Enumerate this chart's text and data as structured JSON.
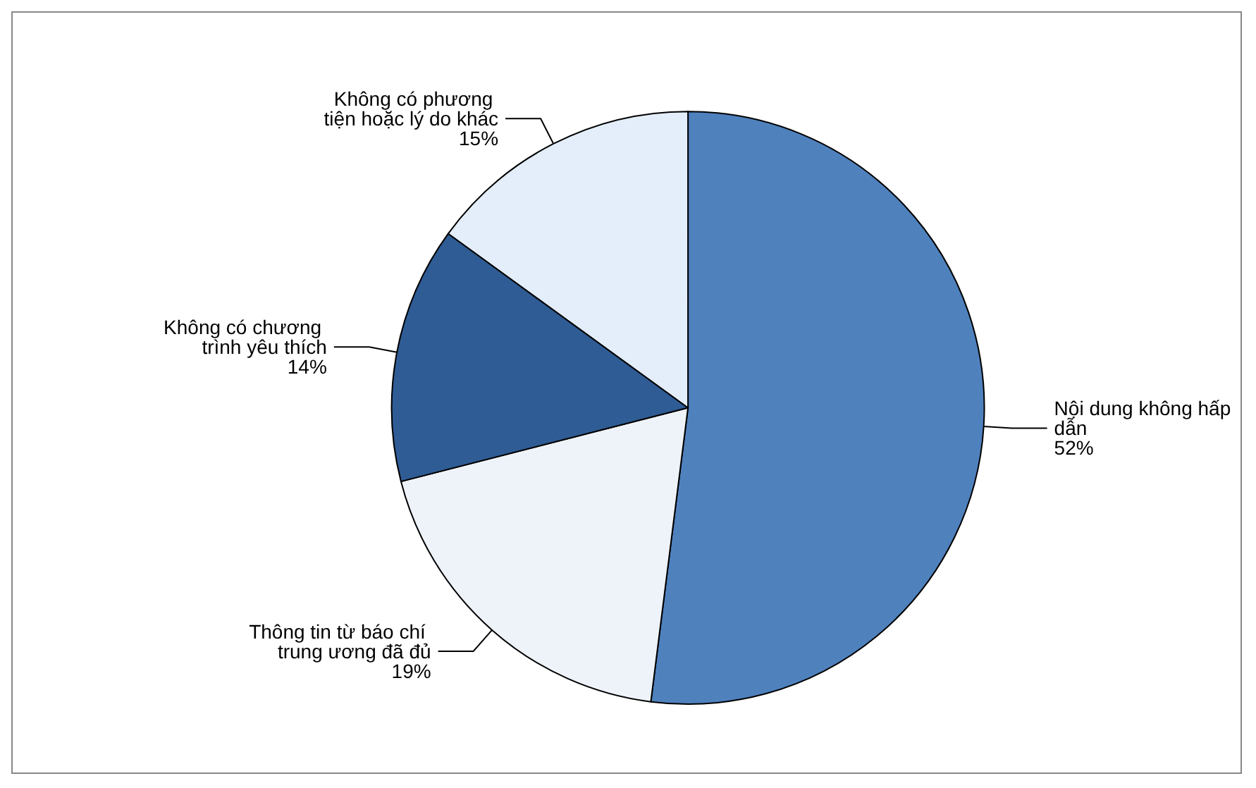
{
  "chart_data": {
    "type": "pie",
    "categories": [
      "Nội dung không hấp dẫn",
      "Thông tin từ báo chí trung ương đã đủ",
      "Không có chương trình yêu thích",
      "Không có phương tiện hoặc lý do khác"
    ],
    "values": [
      52,
      19,
      14,
      15
    ],
    "value_labels": [
      "52%",
      "19%",
      "14%",
      "15%"
    ],
    "colors": [
      "#4f81bd",
      "#eef3fa",
      "#2f5c94",
      "#e3eefa"
    ],
    "legend": false
  }
}
